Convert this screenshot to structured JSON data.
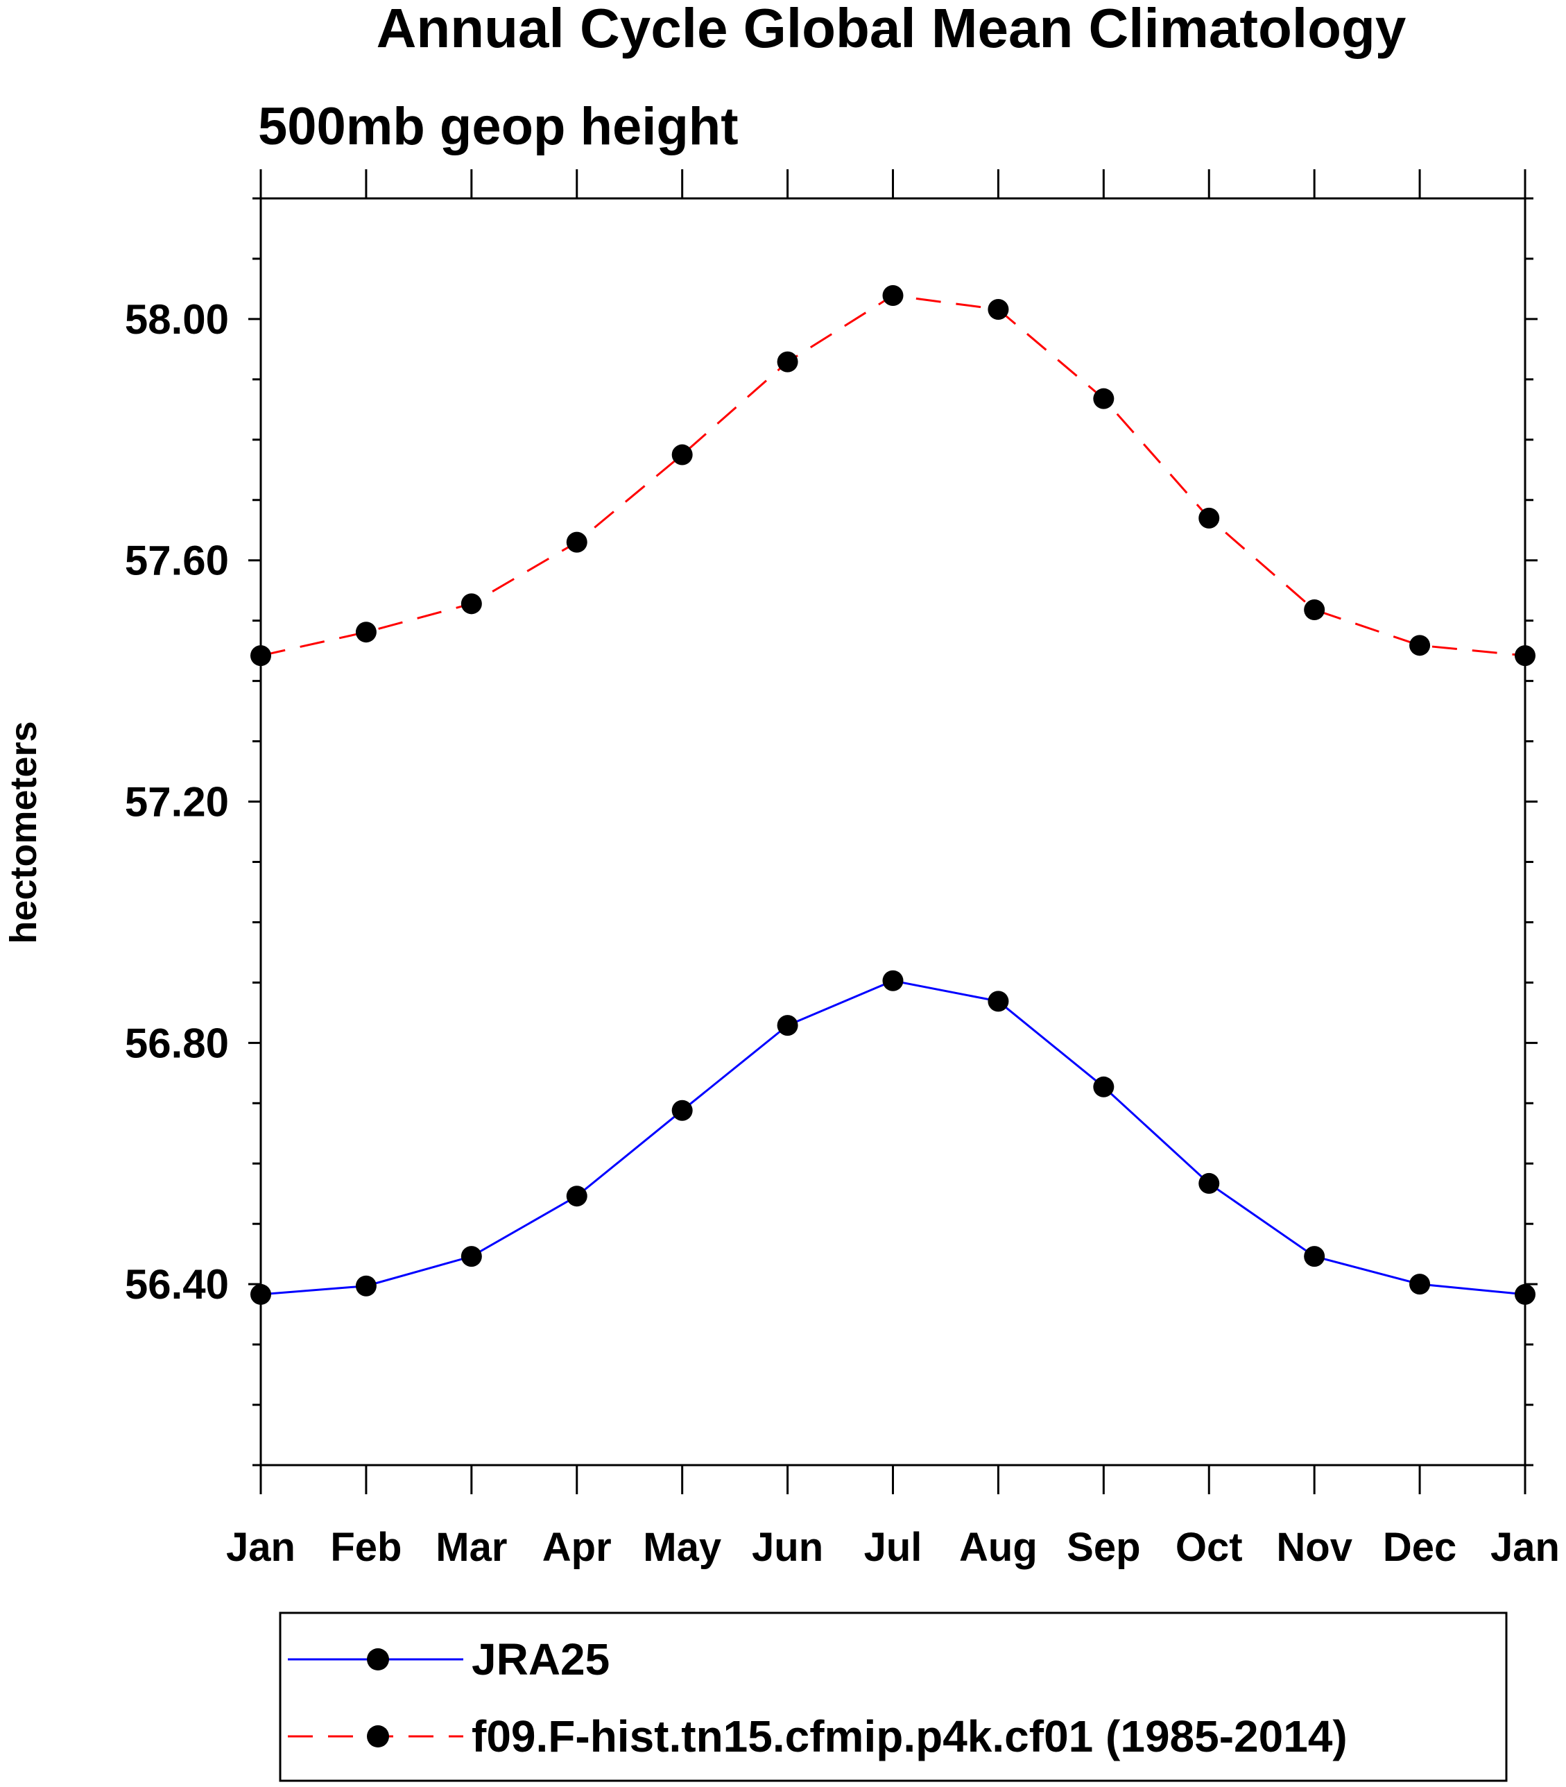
{
  "chart_data": {
    "type": "line",
    "title": "Annual Cycle Global Mean Climatology",
    "subtitle": "500mb geop height",
    "xlabel": "",
    "ylabel": "hectometers",
    "categories": [
      "Jan",
      "Feb",
      "Mar",
      "Apr",
      "May",
      "Jun",
      "Jul",
      "Aug",
      "Sep",
      "Oct",
      "Nov",
      "Dec",
      "Jan"
    ],
    "ylim": [
      56.1,
      58.2
    ],
    "yticks": [
      "56.40",
      "56.80",
      "57.20",
      "57.60",
      "58.00"
    ],
    "series": [
      {
        "name": "JRA25",
        "color": "#0000ff",
        "dash": "solid",
        "values": [
          56.383,
          56.397,
          56.446,
          56.546,
          56.688,
          56.829,
          56.903,
          56.869,
          56.727,
          56.567,
          56.446,
          56.4,
          56.383
        ]
      },
      {
        "name": "f09.F-hist.tn15.cfmip.p4k.cf01 (1985-2014)",
        "color": "#ff0000",
        "dash": "dashed",
        "values": [
          57.442,
          57.481,
          57.528,
          57.63,
          57.775,
          57.929,
          58.039,
          58.016,
          57.868,
          57.67,
          57.518,
          57.459,
          57.442
        ]
      }
    ],
    "grid": false,
    "legend_position": "bottom"
  }
}
